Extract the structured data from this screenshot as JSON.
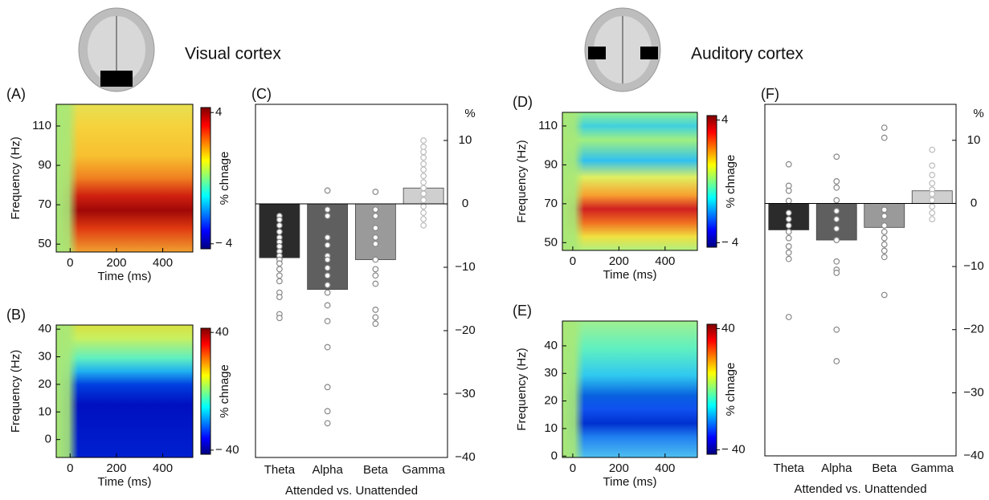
{
  "sections": [
    "Visual cortex",
    "Auditory cortex"
  ],
  "chart_data": [
    {
      "type": "heatmap",
      "panel": "(A)",
      "xlabel": "Time (ms)",
      "ylabel": "Frequency (Hz)",
      "xlim": [
        -60,
        530
      ],
      "xticks": [
        0,
        200,
        400
      ],
      "ylim": [
        46,
        121
      ],
      "yticks": [
        50,
        70,
        90,
        110
      ],
      "colorbar": {
        "label": "% chnage",
        "lim": [
          -4.5,
          4.5
        ],
        "ticks": [
          4,
          {
            "value": -4,
            "label": "− 4"
          }
        ]
      }
    },
    {
      "type": "heatmap",
      "panel": "(B)",
      "xlabel": "Time (ms)",
      "ylabel": "Frequency (Hz)",
      "xlim": [
        -60,
        530
      ],
      "xticks": [
        0,
        200,
        400
      ],
      "ylim": [
        -6.5,
        41.5
      ],
      "yticks": [
        0,
        10,
        20,
        30,
        40
      ],
      "colorbar": {
        "label": "% chnage",
        "lim": [
          -45,
          45
        ],
        "ticks": [
          40,
          {
            "value": -40,
            "label": "− 40"
          }
        ]
      }
    },
    {
      "type": "bar",
      "panel": "(C)",
      "ylabel": "%",
      "xlabel": "Attended vs. Unattended",
      "categories": [
        "Theta",
        "Alpha",
        "Beta",
        "Gamma"
      ],
      "values": [
        -8.5,
        -13.5,
        -8.8,
        2.5
      ],
      "colors": [
        "#2b2b2b",
        "#5f5f5f",
        "#9a9a9a",
        "#cfcfcf"
      ],
      "points": [
        [
          -1.9,
          -2.5,
          -3.4,
          -4.4,
          -5.3,
          -6,
          -6.7,
          -7.5,
          -8.2,
          -8.8,
          -9.4,
          -10.3,
          -11.3,
          -12.2,
          -14,
          -14.7,
          -17.4,
          -18
        ],
        [
          2.1,
          -0.9,
          -1.9,
          -5.3,
          -6.5,
          -8.2,
          -8.8,
          -10.1,
          -11.3,
          -12.8,
          -14,
          -16,
          -18.5,
          -22.6,
          -28.9,
          -32.7,
          -34.6
        ],
        [
          1.9,
          -0.9,
          -1.9,
          -3.8,
          -5.3,
          -6.3,
          -8.8,
          -10.3,
          -11.3,
          -12.6,
          -16.7,
          -17.9,
          -18.9
        ],
        [
          10,
          9,
          8.2,
          7.3,
          6.3,
          5.4,
          4.4,
          3.4,
          2.5,
          1.6,
          0.6,
          -0.4,
          -1.4,
          -2.4,
          -3.4
        ]
      ],
      "ylim": [
        -40,
        15.7
      ],
      "yticks": [
        {
          "value": -40,
          "label": "−40"
        },
        {
          "value": -30,
          "label": "−30"
        },
        {
          "value": -20,
          "label": "−20"
        },
        {
          "value": -10,
          "label": "−10"
        },
        0,
        10
      ]
    },
    {
      "type": "heatmap",
      "panel": "(D)",
      "xlabel": "Time (ms)",
      "ylabel": "Frequency (Hz)",
      "xlim": [
        -45,
        540
      ],
      "xticks": [
        0,
        200,
        400
      ],
      "ylim": [
        46,
        117
      ],
      "yticks": [
        50,
        70,
        90,
        110
      ],
      "colorbar": {
        "label": "% chnage",
        "lim": [
          -4.5,
          4.5
        ],
        "ticks": [
          4,
          {
            "value": -4,
            "label": "− 4"
          }
        ]
      }
    },
    {
      "type": "heatmap",
      "panel": "(E)",
      "xlabel": "Time (ms)",
      "ylabel": "Frequency (Hz)",
      "xlim": [
        -45,
        540
      ],
      "xticks": [
        0,
        200,
        400
      ],
      "ylim": [
        -0.5,
        49
      ],
      "yticks": [
        0,
        10,
        20,
        30,
        40
      ],
      "colorbar": {
        "label": "% chnage",
        "lim": [
          -45,
          45
        ],
        "ticks": [
          40,
          {
            "value": -40,
            "label": "− 40"
          }
        ]
      }
    },
    {
      "type": "bar",
      "panel": "(F)",
      "ylabel": "%",
      "xlabel": "Attended vs. Unattended",
      "categories": [
        "Theta",
        "Alpha",
        "Beta",
        "Gamma"
      ],
      "values": [
        -4.2,
        -5.8,
        -3.8,
        2
      ],
      "colors": [
        "#2b2b2b",
        "#5f5f5f",
        "#9a9a9a",
        "#cfcfcf"
      ],
      "points": [
        [
          6.2,
          2.8,
          2,
          0.4,
          -1.5,
          -2.5,
          -3.5,
          -4.5,
          -5.5,
          -6.8,
          -7.8,
          -8.8,
          -18
        ],
        [
          7.4,
          3.5,
          2.5,
          0.5,
          -1.2,
          -2.5,
          -4,
          -5.8,
          -9.2,
          -10.5,
          -11,
          -20,
          -25
        ],
        [
          12,
          10.4,
          -1,
          -2,
          -3.5,
          -4.5,
          -5.5,
          -6.5,
          -7.5,
          -8.5,
          -14.5
        ],
        [
          8.5,
          6,
          4.5,
          3.2,
          2.2,
          1.5,
          0.5,
          -0.5,
          -1.5,
          -2.5
        ]
      ],
      "ylim": [
        -40,
        15.7
      ],
      "yticks": [
        {
          "value": -40,
          "label": "−40"
        },
        {
          "value": -30,
          "label": "−30"
        },
        {
          "value": -20,
          "label": "−20"
        },
        {
          "value": -10,
          "label": "−10"
        },
        0,
        10
      ]
    }
  ]
}
